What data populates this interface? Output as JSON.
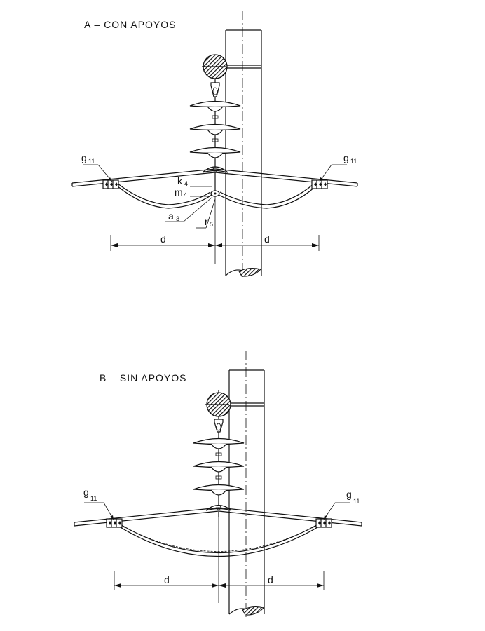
{
  "diagrams": [
    {
      "title": "A – CON APOYOS",
      "labels": {
        "g_left": "g",
        "g_left_sub": "11",
        "g_right": "g",
        "g_right_sub": "11",
        "k": "k",
        "k_sub": "4",
        "m": "m",
        "m_sub": "4",
        "a": "a",
        "a_sub": "3",
        "r": "r",
        "r_sub": "5",
        "d_left": "d",
        "d_right": "d"
      }
    },
    {
      "title": "B – SIN APOYOS",
      "labels": {
        "g_left": "g",
        "g_left_sub": "11",
        "g_right": "g",
        "g_right_sub": "11",
        "d_left": "d",
        "d_right": "d"
      }
    }
  ],
  "colors": {
    "ink": "#111111",
    "background": "#ffffff",
    "hatch": "#222222"
  }
}
